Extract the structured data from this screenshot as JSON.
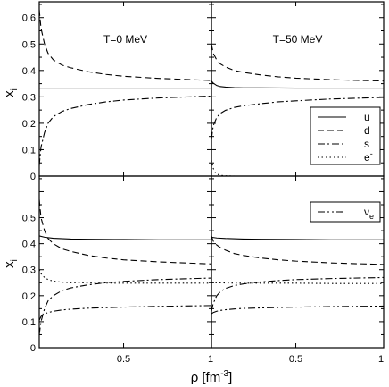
{
  "chart_data": {
    "type": "line",
    "ylabel": "x",
    "ylabel_sub": "i",
    "xlabel": "ρ [fm",
    "xlabel_sup": "-3",
    "xlabel_end": "]",
    "xlim": [
      0.02,
      1.0
    ],
    "ylim": [
      0,
      0.66
    ],
    "x_ticks": [
      0.5,
      1
    ],
    "x_tick_labels": [
      "0.5",
      "1"
    ],
    "x_tick_labels_right": [
      "0.5",
      "1"
    ],
    "y_ticks": [
      0,
      0.1,
      0.2,
      0.3,
      0.4,
      0.5,
      0.6
    ],
    "y_tick_labels": [
      "0",
      "0,1",
      "0,2",
      "0,3",
      "0,4",
      "0,5",
      "0,6"
    ],
    "y_tick_labels_bottom": [
      "0",
      "0,1",
      "0,2",
      "0,3",
      "0,4",
      "0,5"
    ],
    "legend_top": {
      "placement": "right",
      "entries": [
        {
          "key": "u",
          "label": "u",
          "style": "solid"
        },
        {
          "key": "d",
          "label": "d",
          "style": "dashed"
        },
        {
          "key": "s",
          "label": "s",
          "style": "dashdot"
        },
        {
          "key": "e",
          "label": "e",
          "label_sup": "-",
          "style": "dotted"
        }
      ]
    },
    "legend_bottom": {
      "placement": "top-right",
      "entries": [
        {
          "key": "nu",
          "label": "ν",
          "label_sub": "e",
          "style": "dashdotdot"
        }
      ]
    },
    "panels": [
      {
        "id": "top-left",
        "annotation": "T=0 MeV",
        "series": [
          {
            "key": "u",
            "style": "solid",
            "x": [
              0.02,
              0.05,
              0.1,
              0.2,
              0.3,
              0.5,
              0.7,
              1.0
            ],
            "y": [
              0.333,
              0.333,
              0.333,
              0.333,
              0.333,
              0.333,
              0.333,
              0.333
            ]
          },
          {
            "key": "d",
            "style": "dashed",
            "x": [
              0.02,
              0.03,
              0.05,
              0.07,
              0.1,
              0.15,
              0.2,
              0.3,
              0.4,
              0.5,
              0.7,
              1.0
            ],
            "y": [
              0.63,
              0.56,
              0.5,
              0.465,
              0.44,
              0.42,
              0.41,
              0.395,
              0.385,
              0.378,
              0.37,
              0.362
            ]
          },
          {
            "key": "s",
            "style": "dashdot",
            "x": [
              0.02,
              0.03,
              0.05,
              0.07,
              0.1,
              0.15,
              0.2,
              0.3,
              0.4,
              0.5,
              0.7,
              1.0
            ],
            "y": [
              0.04,
              0.11,
              0.165,
              0.2,
              0.225,
              0.245,
              0.256,
              0.271,
              0.281,
              0.288,
              0.296,
              0.303
            ]
          }
        ]
      },
      {
        "id": "top-right",
        "annotation": "T=50 MeV",
        "series": [
          {
            "key": "u",
            "style": "solid",
            "x": [
              0.02,
              0.03,
              0.05,
              0.07,
              0.1,
              0.15,
              0.2,
              0.3,
              0.5,
              1.0
            ],
            "y": [
              0.36,
              0.352,
              0.343,
              0.339,
              0.337,
              0.335,
              0.334,
              0.334,
              0.333,
              0.333
            ]
          },
          {
            "key": "d",
            "style": "dashed",
            "x": [
              0.02,
              0.03,
              0.05,
              0.07,
              0.1,
              0.15,
              0.2,
              0.3,
              0.4,
              0.5,
              0.7,
              1.0
            ],
            "y": [
              0.5,
              0.465,
              0.44,
              0.425,
              0.413,
              0.4,
              0.393,
              0.383,
              0.376,
              0.371,
              0.365,
              0.36
            ]
          },
          {
            "key": "s",
            "style": "dashdot",
            "x": [
              0.02,
              0.03,
              0.05,
              0.07,
              0.1,
              0.15,
              0.2,
              0.3,
              0.4,
              0.5,
              0.7,
              1.0
            ],
            "y": [
              0.14,
              0.19,
              0.222,
              0.237,
              0.249,
              0.26,
              0.266,
              0.274,
              0.281,
              0.285,
              0.292,
              0.298
            ]
          },
          {
            "key": "e",
            "style": "dotted",
            "x": [
              0.02,
              0.03,
              0.04,
              0.05,
              0.07,
              0.1,
              0.15,
              0.2
            ],
            "y": [
              0.06,
              0.03,
              0.015,
              0.008,
              0.003,
              0.001,
              0.0,
              0.0
            ]
          }
        ]
      },
      {
        "id": "bottom-left",
        "annotation": "",
        "series": [
          {
            "key": "u",
            "style": "solid",
            "x": [
              0.02,
              0.05,
              0.1,
              0.2,
              0.3,
              0.5,
              0.7,
              1.0
            ],
            "y": [
              0.43,
              0.425,
              0.421,
              0.418,
              0.417,
              0.416,
              0.415,
              0.415
            ]
          },
          {
            "key": "d",
            "style": "dashed",
            "x": [
              0.02,
              0.03,
              0.05,
              0.07,
              0.1,
              0.15,
              0.2,
              0.3,
              0.4,
              0.5,
              0.7,
              1.0
            ],
            "y": [
              0.57,
              0.5,
              0.45,
              0.42,
              0.4,
              0.38,
              0.37,
              0.355,
              0.345,
              0.338,
              0.33,
              0.322
            ]
          },
          {
            "key": "e",
            "style": "dotted",
            "x": [
              0.02,
              0.03,
              0.05,
              0.07,
              0.1,
              0.15,
              0.2,
              0.3,
              0.5,
              0.7,
              1.0
            ],
            "y": [
              0.3,
              0.285,
              0.27,
              0.262,
              0.256,
              0.252,
              0.25,
              0.249,
              0.248,
              0.248,
              0.248
            ]
          },
          {
            "key": "s",
            "style": "dashdot",
            "x": [
              0.02,
              0.03,
              0.05,
              0.07,
              0.1,
              0.15,
              0.2,
              0.3,
              0.4,
              0.5,
              0.7,
              1.0
            ],
            "y": [
              0.05,
              0.1,
              0.15,
              0.18,
              0.2,
              0.22,
              0.23,
              0.242,
              0.25,
              0.255,
              0.262,
              0.268
            ]
          },
          {
            "key": "nu",
            "style": "dashdotdot",
            "x": [
              0.02,
              0.03,
              0.05,
              0.07,
              0.1,
              0.15,
              0.2,
              0.3,
              0.5,
              0.7,
              1.0
            ],
            "y": [
              0.105,
              0.12,
              0.13,
              0.135,
              0.14,
              0.145,
              0.148,
              0.152,
              0.156,
              0.159,
              0.162
            ]
          }
        ]
      },
      {
        "id": "bottom-right",
        "annotation": "",
        "series": [
          {
            "key": "u",
            "style": "solid",
            "x": [
              0.02,
              0.05,
              0.1,
              0.2,
              0.3,
              0.5,
              0.7,
              1.0
            ],
            "y": [
              0.425,
              0.422,
              0.42,
              0.418,
              0.417,
              0.416,
              0.415,
              0.415
            ]
          },
          {
            "key": "d",
            "style": "dashed",
            "x": [
              0.02,
              0.03,
              0.05,
              0.07,
              0.1,
              0.15,
              0.2,
              0.3,
              0.4,
              0.5,
              0.7,
              1.0
            ],
            "y": [
              0.43,
              0.41,
              0.395,
              0.385,
              0.375,
              0.362,
              0.355,
              0.345,
              0.338,
              0.333,
              0.326,
              0.32
            ]
          },
          {
            "key": "e",
            "style": "dotted",
            "x": [
              0.02,
              0.05,
              0.1,
              0.2,
              0.3,
              0.5,
              0.7,
              1.0
            ],
            "y": [
              0.25,
              0.25,
              0.249,
              0.248,
              0.248,
              0.248,
              0.247,
              0.247
            ]
          },
          {
            "key": "s",
            "style": "dashdot",
            "x": [
              0.02,
              0.03,
              0.05,
              0.07,
              0.1,
              0.15,
              0.2,
              0.3,
              0.4,
              0.5,
              0.7,
              1.0
            ],
            "y": [
              0.14,
              0.17,
              0.2,
              0.215,
              0.228,
              0.239,
              0.245,
              0.253,
              0.258,
              0.262,
              0.266,
              0.27
            ]
          },
          {
            "key": "nu",
            "style": "dashdotdot",
            "x": [
              0.02,
              0.03,
              0.05,
              0.07,
              0.1,
              0.15,
              0.2,
              0.3,
              0.5,
              0.7,
              1.0
            ],
            "y": [
              0.13,
              0.135,
              0.14,
              0.143,
              0.146,
              0.149,
              0.151,
              0.153,
              0.156,
              0.158,
              0.16
            ]
          }
        ]
      }
    ]
  }
}
